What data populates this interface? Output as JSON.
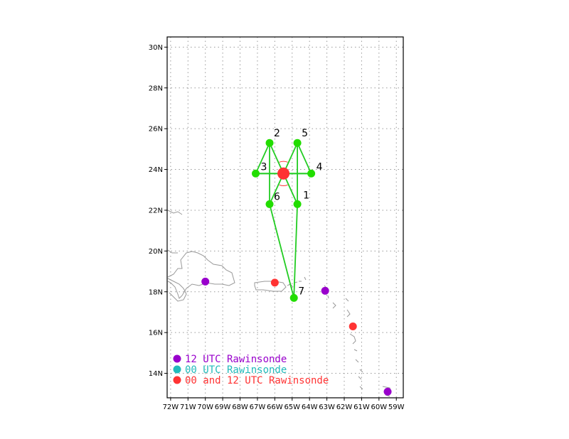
{
  "map": {
    "lat_min": 12.8,
    "lat_max": 30.5,
    "lon_min": -72.2,
    "lon_max": -58.6,
    "y_ticks": [
      {
        "lat": 14,
        "label": "14N"
      },
      {
        "lat": 16,
        "label": "16N"
      },
      {
        "lat": 18,
        "label": "18N"
      },
      {
        "lat": 20,
        "label": "20N"
      },
      {
        "lat": 22,
        "label": "22N"
      },
      {
        "lat": 24,
        "label": "24N"
      },
      {
        "lat": 26,
        "label": "26N"
      },
      {
        "lat": 28,
        "label": "28N"
      },
      {
        "lat": 30,
        "label": "30N"
      }
    ],
    "x_ticks": [
      {
        "lon": -72,
        "label": "72W"
      },
      {
        "lon": -71,
        "label": "71W"
      },
      {
        "lon": -70,
        "label": "70W"
      },
      {
        "lon": -69,
        "label": "69W"
      },
      {
        "lon": -68,
        "label": "68W"
      },
      {
        "lon": -67,
        "label": "67W"
      },
      {
        "lon": -66,
        "label": "66W"
      },
      {
        "lon": -65,
        "label": "65W"
      },
      {
        "lon": -64,
        "label": "64W"
      },
      {
        "lon": -63,
        "label": "63W"
      },
      {
        "lon": -62,
        "label": "62W"
      },
      {
        "lon": -61,
        "label": "61W"
      },
      {
        "lon": -60,
        "label": "60W"
      },
      {
        "lon": -59,
        "label": "59W"
      }
    ],
    "grid": "dotted",
    "colors": {
      "frame": "#000000",
      "grid": "#999999",
      "coast": "#999999",
      "track": "#22cc22",
      "point": "#22dd00",
      "storm": "#ff3333"
    }
  },
  "storm_center": {
    "lat": 23.8,
    "lon": -65.5
  },
  "flight_points": [
    {
      "id": "1",
      "lat": 22.3,
      "lon": -64.7
    },
    {
      "id": "2",
      "lat": 25.3,
      "lon": -66.3
    },
    {
      "id": "3",
      "lat": 23.8,
      "lon": -67.1
    },
    {
      "id": "4",
      "lat": 23.8,
      "lon": -63.9
    },
    {
      "id": "5",
      "lat": 25.3,
      "lon": -64.7
    },
    {
      "id": "6",
      "lat": 22.3,
      "lon": -66.3
    },
    {
      "id": "7",
      "lat": 17.7,
      "lon": -64.9
    }
  ],
  "flight_track": [
    "7",
    "6",
    "2",
    "3",
    "4",
    "5",
    "1",
    "7"
  ],
  "rawinsondes": [
    {
      "lat": 18.5,
      "lon": -70.0,
      "type": "12"
    },
    {
      "lat": 18.05,
      "lon": -63.1,
      "type": "12"
    },
    {
      "lat": 13.1,
      "lon": -59.5,
      "type": "12"
    },
    {
      "lat": 18.45,
      "lon": -66.0,
      "type": "both"
    },
    {
      "lat": 16.3,
      "lon": -61.5,
      "type": "both"
    }
  ],
  "legend": {
    "items": [
      {
        "text": "12 UTC Rawinsonde",
        "color": "#9900cc",
        "type": "12"
      },
      {
        "text": "00 UTC Rawinsonde",
        "color": "#22bbbb",
        "type": "00"
      },
      {
        "text": "00 and 12 UTC Rawinsonde",
        "color": "#ff3333",
        "type": "both"
      }
    ]
  }
}
